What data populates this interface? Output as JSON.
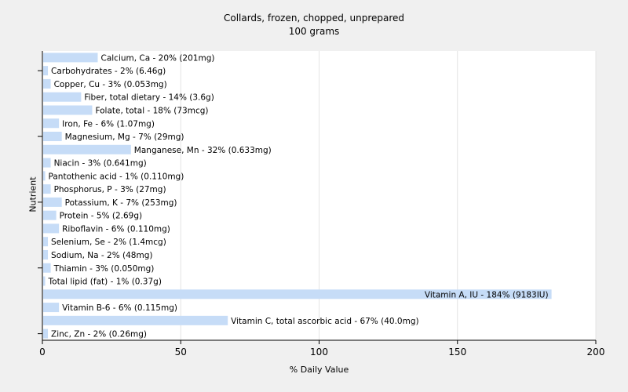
{
  "chart_data": {
    "type": "bar",
    "orientation": "horizontal",
    "title": "Collards, frozen, chopped, unprepared",
    "subtitle": "100 grams",
    "xlabel": "% Daily Value",
    "ylabel": "Nutrient",
    "xlim": [
      0,
      200
    ],
    "xticks": [
      "0",
      "50",
      "100",
      "150",
      "200"
    ],
    "bar_color": "#c6dcf7",
    "grid": true,
    "categories": [
      "Calcium, Ca",
      "Carbohydrates",
      "Copper, Cu",
      "Fiber, total dietary",
      "Folate, total",
      "Iron, Fe",
      "Magnesium, Mg",
      "Manganese, Mn",
      "Niacin",
      "Pantothenic acid",
      "Phosphorus, P",
      "Potassium, K",
      "Protein",
      "Riboflavin",
      "Selenium, Se",
      "Sodium, Na",
      "Thiamin",
      "Total lipid (fat)",
      "Vitamin A, IU",
      "Vitamin B-6",
      "Vitamin C, total ascorbic acid",
      "Zinc, Zn"
    ],
    "values": [
      20,
      2,
      3,
      14,
      18,
      6,
      7,
      32,
      3,
      1,
      3,
      7,
      5,
      6,
      2,
      2,
      3,
      1,
      184,
      6,
      67,
      2
    ],
    "labels": [
      "Calcium, Ca - 20% (201mg)",
      "Carbohydrates - 2% (6.46g)",
      "Copper, Cu - 3% (0.053mg)",
      "Fiber, total dietary - 14% (3.6g)",
      "Folate, total - 18% (73mcg)",
      "Iron, Fe - 6% (1.07mg)",
      "Magnesium, Mg - 7% (29mg)",
      "Manganese, Mn - 32% (0.633mg)",
      "Niacin - 3% (0.641mg)",
      "Pantothenic acid - 1% (0.110mg)",
      "Phosphorus, P - 3% (27mg)",
      "Potassium, K - 7% (253mg)",
      "Protein - 5% (2.69g)",
      "Riboflavin - 6% (0.110mg)",
      "Selenium, Se - 2% (1.4mcg)",
      "Sodium, Na - 2% (48mg)",
      "Thiamin - 3% (0.050mg)",
      "Total lipid (fat) - 1% (0.37g)",
      "Vitamin A, IU - 184% (9183IU)",
      "Vitamin B-6 - 6% (0.115mg)",
      "Vitamin C, total ascorbic acid - 67% (40.0mg)",
      "Zinc, Zn - 2% (0.26mg)"
    ]
  }
}
